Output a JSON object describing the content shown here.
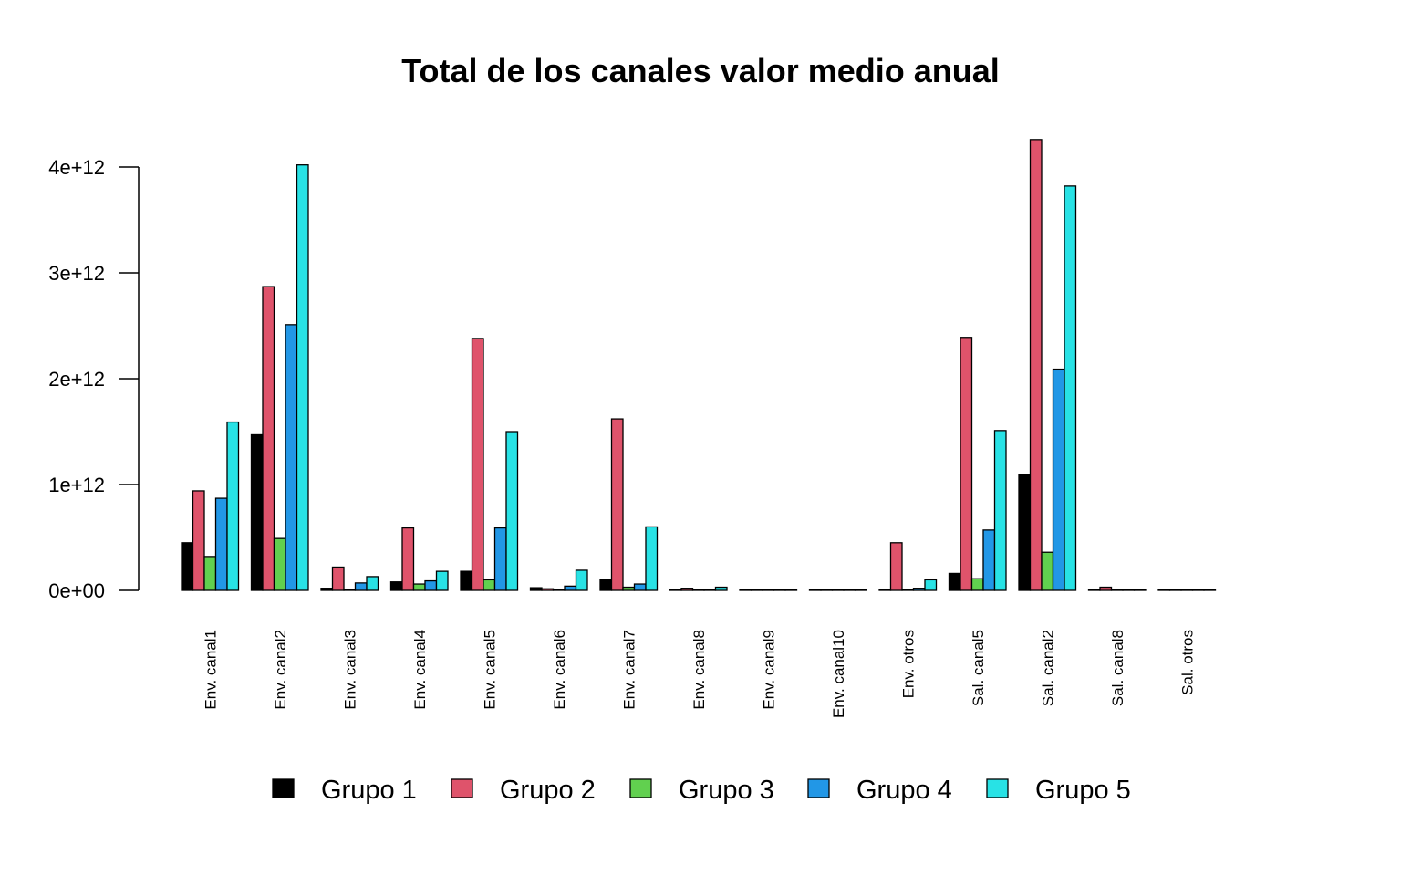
{
  "chart_data": {
    "type": "bar",
    "title": "Total de los canales valor medio anual",
    "xlabel": "",
    "ylabel": "",
    "ylim": [
      0,
      4300000000000
    ],
    "yticks": [
      {
        "value": 0,
        "label": "0e+00"
      },
      {
        "value": 1000000000000,
        "label": "1e+12"
      },
      {
        "value": 2000000000000,
        "label": "2e+12"
      },
      {
        "value": 3000000000000,
        "label": "3e+12"
      },
      {
        "value": 4000000000000,
        "label": "4e+12"
      }
    ],
    "categories": [
      "Env. canal1",
      "Env. canal2",
      "Env. canal3",
      "Env. canal4",
      "Env. canal5",
      "Env. canal6",
      "Env. canal7",
      "Env. canal8",
      "Env. canal9",
      "Env. canal10",
      "Env. otros",
      "Sal. canal5",
      "Sal. canal2",
      "Sal. canal8",
      "Sal. otros"
    ],
    "series": [
      {
        "name": "Grupo 1",
        "color": "#000000",
        "values": [
          450000000000,
          1470000000000,
          20000000000,
          80000000000,
          180000000000,
          25000000000,
          100000000000,
          5000000000,
          3000000000,
          1000000000,
          10000000000,
          160000000000,
          1090000000000,
          3000000000,
          1000000000
        ]
      },
      {
        "name": "Grupo 2",
        "color": "#DF536B",
        "values": [
          940000000000,
          2870000000000,
          220000000000,
          590000000000,
          2380000000000,
          15000000000,
          1620000000000,
          20000000000,
          10000000000,
          2000000000,
          450000000000,
          2390000000000,
          4260000000000,
          30000000000,
          2000000000
        ]
      },
      {
        "name": "Grupo 3",
        "color": "#61D04F",
        "values": [
          320000000000,
          490000000000,
          10000000000,
          60000000000,
          100000000000,
          10000000000,
          30000000000,
          3000000000,
          2000000000,
          500000000,
          5000000000,
          110000000000,
          360000000000,
          2000000000,
          500000000
        ]
      },
      {
        "name": "Grupo 4",
        "color": "#2297E6",
        "values": [
          870000000000,
          2510000000000,
          70000000000,
          90000000000,
          590000000000,
          40000000000,
          60000000000,
          5000000000,
          3000000000,
          1000000000,
          20000000000,
          570000000000,
          2090000000000,
          5000000000,
          1000000000
        ]
      },
      {
        "name": "Grupo 5",
        "color": "#28E2E5",
        "values": [
          1590000000000,
          4020000000000,
          130000000000,
          180000000000,
          1500000000000,
          190000000000,
          600000000000,
          30000000000,
          5000000000,
          2000000000,
          100000000000,
          1510000000000,
          3820000000000,
          5000000000,
          2000000000
        ]
      }
    ],
    "legend_position": "bottom",
    "grid": false
  }
}
